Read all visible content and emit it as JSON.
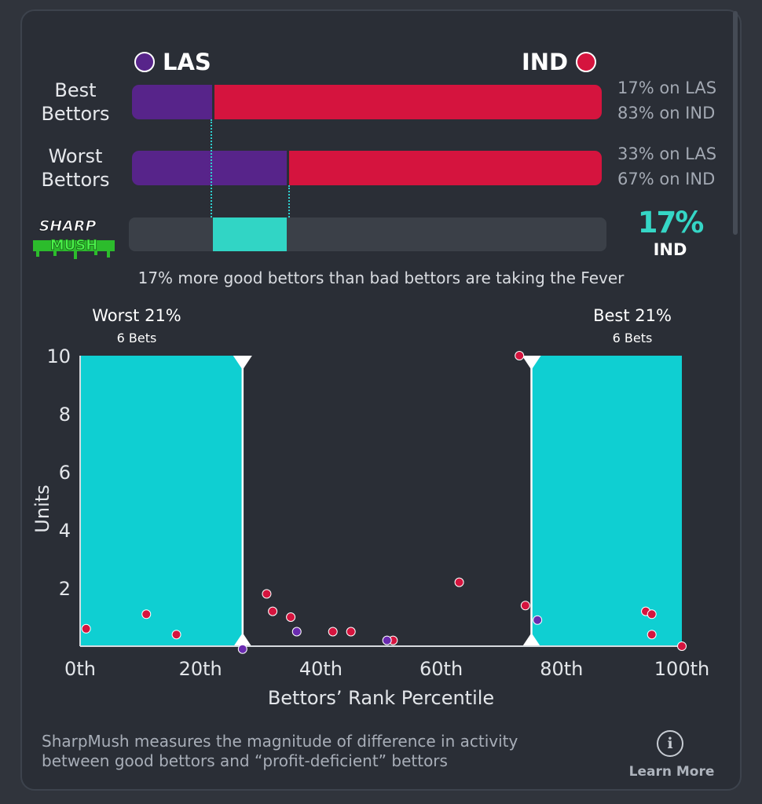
{
  "teams": {
    "away": {
      "code": "LAS",
      "color": "#57248a"
    },
    "home": {
      "code": "IND",
      "color": "#d5143e"
    }
  },
  "rows": [
    {
      "label_line1": "Best",
      "label_line2": "Bettors",
      "las_pct": 17,
      "ind_pct": 83,
      "las_text": "17% on LAS",
      "ind_text": "83% on IND"
    },
    {
      "label_line1": "Worst",
      "label_line2": "Bettors",
      "las_pct": 33,
      "ind_pct": 67,
      "las_text": "33% on LAS",
      "ind_text": "67% on IND"
    }
  ],
  "sharp": {
    "logo_line1": "SHARP",
    "logo_line2": "MUSH",
    "value": 17,
    "value_text": "17%",
    "team": "IND",
    "accent": "#31d5c5",
    "summary": "17% more good bettors than bad bettors are taking the Fever"
  },
  "bands": {
    "worst_label": "Worst 21%",
    "worst_sub": "6 Bets",
    "best_label": "Best 21%",
    "best_sub": "6 Bets"
  },
  "chart_data": {
    "type": "scatter",
    "xlabel": "Bettors’ Rank Percentile",
    "ylabel": "Units",
    "xlim": [
      0,
      100
    ],
    "ylim": [
      0,
      10
    ],
    "x_ticks": [
      0,
      20,
      40,
      60,
      80,
      100
    ],
    "x_tick_labels": [
      "0th",
      "20th",
      "40th",
      "60th",
      "80th",
      "100th"
    ],
    "y_ticks": [
      2,
      4,
      6,
      8,
      10
    ],
    "y_tick_labels": [
      "2",
      "4",
      "6",
      "8",
      "10"
    ],
    "bands": [
      {
        "name": "Worst 21%",
        "x_from": 0,
        "x_to": 27,
        "color": "#0fcfd2"
      },
      {
        "name": "Best 21%",
        "x_from": 75,
        "x_to": 100,
        "color": "#0fcfd2"
      }
    ],
    "series": [
      {
        "name": "IND",
        "color": "#d5143e",
        "points": [
          [
            1,
            0.6
          ],
          [
            11,
            1.1
          ],
          [
            16,
            0.4
          ],
          [
            31,
            1.8
          ],
          [
            32,
            1.2
          ],
          [
            35,
            1.0
          ],
          [
            42,
            0.5
          ],
          [
            45,
            0.5
          ],
          [
            52,
            0.2
          ],
          [
            63,
            2.2
          ],
          [
            73,
            10.0
          ],
          [
            74,
            1.4
          ],
          [
            94,
            1.2
          ],
          [
            95,
            1.1
          ],
          [
            95,
            0.4
          ],
          [
            100,
            0.0
          ]
        ]
      },
      {
        "name": "LAS",
        "color": "#6a2bb0",
        "points": [
          [
            27,
            -0.1
          ],
          [
            36,
            0.5
          ],
          [
            51,
            0.2
          ],
          [
            76,
            0.9
          ]
        ]
      }
    ],
    "grid": false,
    "legend": "none"
  },
  "footer": {
    "text_line1": "SharpMush measures the magnitude of difference in activity",
    "text_line2": "between good bettors and “profit-deficient” bettors",
    "info_icon_glyph": "i",
    "learn_more": "Learn More"
  }
}
